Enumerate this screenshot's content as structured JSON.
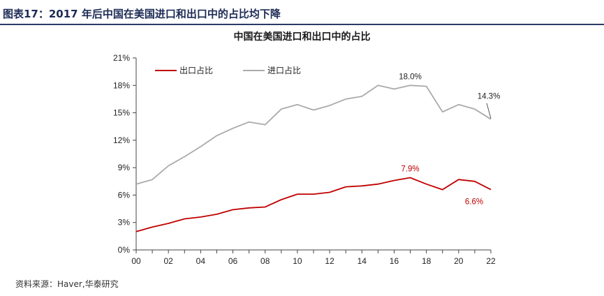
{
  "figure": {
    "label": "图表17：",
    "heading": "2017 年后中国在美国进口和出口中的占比均下降",
    "source": "资料来源：Haver,华泰研究"
  },
  "chart_data": {
    "type": "line",
    "title": "中国在美国进口和出口中的占比",
    "xlabel": "",
    "ylabel": "",
    "x": [
      0,
      1,
      2,
      3,
      4,
      5,
      6,
      7,
      8,
      9,
      10,
      11,
      12,
      13,
      14,
      15,
      16,
      17,
      18,
      19,
      20,
      21,
      22
    ],
    "x_ticks": [
      0,
      2,
      4,
      6,
      8,
      10,
      12,
      14,
      16,
      18,
      20,
      22
    ],
    "x_tick_labels": [
      "00",
      "02",
      "04",
      "06",
      "08",
      "10",
      "12",
      "14",
      "16",
      "18",
      "20",
      "22"
    ],
    "xlim": [
      0,
      22
    ],
    "ylim": [
      0,
      21
    ],
    "y_ticks": [
      0,
      3,
      6,
      9,
      12,
      15,
      18,
      21
    ],
    "y_tick_labels": [
      "0%",
      "3%",
      "6%",
      "9%",
      "12%",
      "15%",
      "18%",
      "21%"
    ],
    "grid": false,
    "legend_position": "top-left",
    "series": [
      {
        "name": "出口占比",
        "color": "#c00000",
        "values": [
          2.0,
          2.5,
          2.9,
          3.4,
          3.6,
          3.9,
          4.4,
          4.6,
          4.7,
          5.5,
          6.1,
          6.1,
          6.3,
          6.9,
          7.0,
          7.2,
          7.6,
          7.9,
          7.2,
          6.6,
          7.7,
          7.5,
          6.6
        ]
      },
      {
        "name": "进口占比",
        "color": "#aaaaaa",
        "values": [
          7.2,
          7.7,
          9.2,
          10.2,
          11.3,
          12.5,
          13.3,
          14.0,
          13.7,
          15.4,
          15.9,
          15.3,
          15.8,
          16.5,
          16.8,
          18.0,
          17.6,
          18.0,
          17.9,
          15.1,
          15.9,
          15.4,
          14.3
        ]
      }
    ],
    "annotations": [
      {
        "series": 1,
        "index": 17,
        "text": "18.0%",
        "color": "#222222",
        "pos": "above"
      },
      {
        "series": 1,
        "index": 22,
        "text": "14.3%",
        "color": "#222222",
        "pos": "callout"
      },
      {
        "series": 0,
        "index": 17,
        "text": "7.9%",
        "color": "#c00000",
        "pos": "above"
      },
      {
        "series": 0,
        "index": 22,
        "text": "6.6%",
        "color": "#c00000",
        "pos": "below-left"
      }
    ]
  }
}
